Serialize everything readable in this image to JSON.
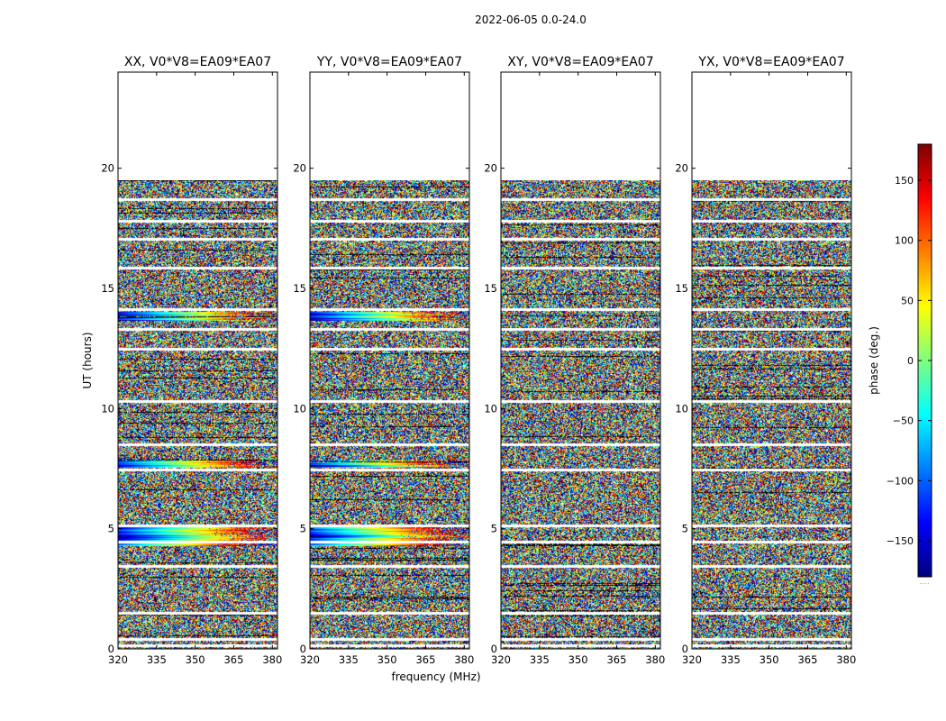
{
  "figure_title": "2022-06-05 0.0-24.0",
  "chart_data": {
    "type": "heatmap",
    "x": {
      "label": "frequency (MHz)",
      "range": [
        320,
        382
      ],
      "ticks": [
        320,
        335,
        350,
        365,
        380
      ]
    },
    "y": {
      "label": "UT (hours)",
      "range": [
        0,
        24
      ],
      "ticks": [
        0,
        5,
        10,
        15,
        20
      ]
    },
    "colorbar": {
      "label": "phase (deg.)",
      "range": [
        -180,
        180
      ],
      "ticks": [
        150,
        100,
        50,
        0,
        -50,
        -100,
        -150
      ],
      "tick_labels": [
        "150",
        "100",
        "50",
        "0",
        "−50",
        "−100",
        "−150"
      ],
      "colormap": "jet",
      "colors": [
        "#00007f",
        "#0000ff",
        "#007fff",
        "#00ffff",
        "#7fff7f",
        "#ffff00",
        "#ff7f00",
        "#ff0000",
        "#7f0000"
      ],
      "footnote": "....."
    },
    "data_end_hour": 19.5,
    "panels": [
      {
        "title": "XX, V0*V8=EA09*EA07",
        "coherent_bands_hours": [
          [
            13.65,
            14.05
          ],
          [
            7.55,
            7.85
          ],
          [
            4.3,
            5.2
          ]
        ]
      },
      {
        "title": "YY, V0*V8=EA09*EA07",
        "coherent_bands_hours": [
          [
            13.65,
            14.05
          ],
          [
            7.55,
            7.85
          ],
          [
            4.3,
            5.2
          ]
        ]
      },
      {
        "title": "XY, V0*V8=EA09*EA07",
        "coherent_bands_hours": []
      },
      {
        "title": "YX, V0*V8=EA09*EA07",
        "coherent_bands_hours": []
      }
    ],
    "flagged_gaps_hours": [
      0.15,
      0.4,
      1.5,
      3.45,
      4.45,
      5.15,
      7.45,
      8.5,
      10.3,
      12.5,
      13.3,
      14.15,
      15.85,
      17.05,
      17.8,
      18.7
    ],
    "phase_noise": "random phase (±180°) outside coherent bands"
  },
  "colors": {
    "frame": "#000000",
    "background": "#ffffff"
  }
}
